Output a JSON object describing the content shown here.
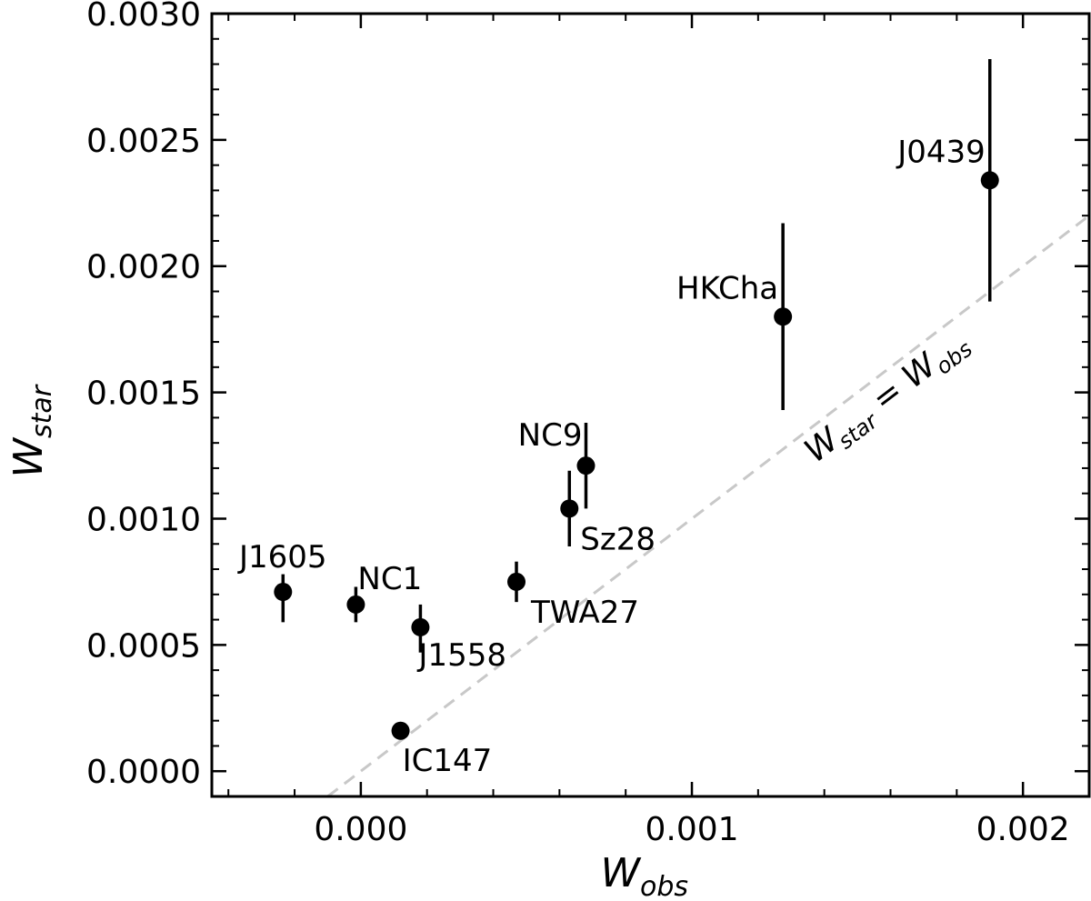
{
  "chart_data": {
    "type": "scatter",
    "title": "",
    "xlabel": {
      "main": "W",
      "sub": "obs"
    },
    "ylabel": {
      "main": "W",
      "sub": "star"
    },
    "xlim": [
      -0.00045,
      0.0022
    ],
    "ylim": [
      -0.0001,
      0.003
    ],
    "xticks": [
      0.0,
      0.001,
      0.002
    ],
    "xtick_labels": [
      "0.000",
      "0.001",
      "0.002"
    ],
    "yticks": [
      0.0,
      0.0005,
      0.001,
      0.0015,
      0.002,
      0.0025,
      0.003
    ],
    "ytick_labels": [
      "0.0000",
      "0.0005",
      "0.0010",
      "0.0015",
      "0.0020",
      "0.0025",
      "0.0030"
    ],
    "grid": false,
    "reference_line": {
      "label_main": "W",
      "label_sub1": "star",
      "label_eq": " = W",
      "label_sub2": "obs",
      "color": "#c8c8c8"
    },
    "points": [
      {
        "name": "J1605",
        "x": -0.000235,
        "y": 0.00071,
        "yerr_low": 0.00012,
        "yerr_high": 7e-05,
        "label_pos": "above"
      },
      {
        "name": "NC1",
        "x": -1.5e-05,
        "y": 0.00066,
        "yerr_low": 7e-05,
        "yerr_high": 7e-05,
        "label_pos": "above-right"
      },
      {
        "name": "J1558",
        "x": 0.00018,
        "y": 0.00057,
        "yerr_low": 0.0001,
        "yerr_high": 9e-05,
        "label_pos": "below-right"
      },
      {
        "name": "IC147",
        "x": 0.00012,
        "y": 0.00016,
        "yerr_low": 0.0,
        "yerr_high": 0.0,
        "label_pos": "below-right"
      },
      {
        "name": "TWA27",
        "x": 0.00047,
        "y": 0.00075,
        "yerr_low": 8e-05,
        "yerr_high": 8e-05,
        "label_pos": "below-right"
      },
      {
        "name": "Sz28",
        "x": 0.00063,
        "y": 0.00104,
        "yerr_low": 0.00015,
        "yerr_high": 0.00015,
        "label_pos": "below-right"
      },
      {
        "name": "NC9",
        "x": 0.00068,
        "y": 0.00121,
        "yerr_low": 0.00017,
        "yerr_high": 0.00017,
        "label_pos": "above-left"
      },
      {
        "name": "HKCha",
        "x": 0.001275,
        "y": 0.0018,
        "yerr_low": 0.00037,
        "yerr_high": 0.00037,
        "label_pos": "above-left"
      },
      {
        "name": "J0439",
        "x": 0.0019,
        "y": 0.00234,
        "yerr_low": 0.00048,
        "yerr_high": 0.00048,
        "label_pos": "above-left"
      }
    ],
    "marker_color": "#000000"
  }
}
